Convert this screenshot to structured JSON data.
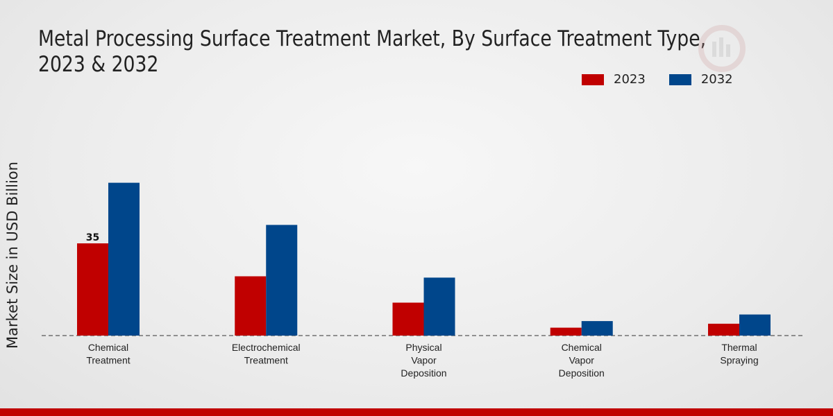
{
  "chart_data": {
    "type": "bar",
    "title": "Metal Processing Surface Treatment Market, By Surface Treatment Type, 2023 & 2032",
    "xlabel": "",
    "ylabel": "Market Size in USD Billion",
    "categories": [
      [
        "Chemical",
        "Treatment"
      ],
      [
        "Electrochemical",
        "Treatment"
      ],
      [
        "Physical",
        "Vapor",
        "Deposition"
      ],
      [
        "Chemical",
        "Vapor",
        "Deposition"
      ],
      [
        "Thermal",
        "Spraying"
      ]
    ],
    "series": [
      {
        "name": "2023",
        "color": "#c00000",
        "values": [
          35,
          22.5,
          12.5,
          3,
          4.5
        ]
      },
      {
        "name": "2032",
        "color": "#00468b",
        "values": [
          58,
          42,
          22,
          5.5,
          8
        ]
      }
    ],
    "data_labels": [
      {
        "series": 0,
        "index": 0,
        "text": "35"
      }
    ],
    "ylim": [
      0,
      80
    ],
    "grid": false,
    "legend": "top-right"
  }
}
